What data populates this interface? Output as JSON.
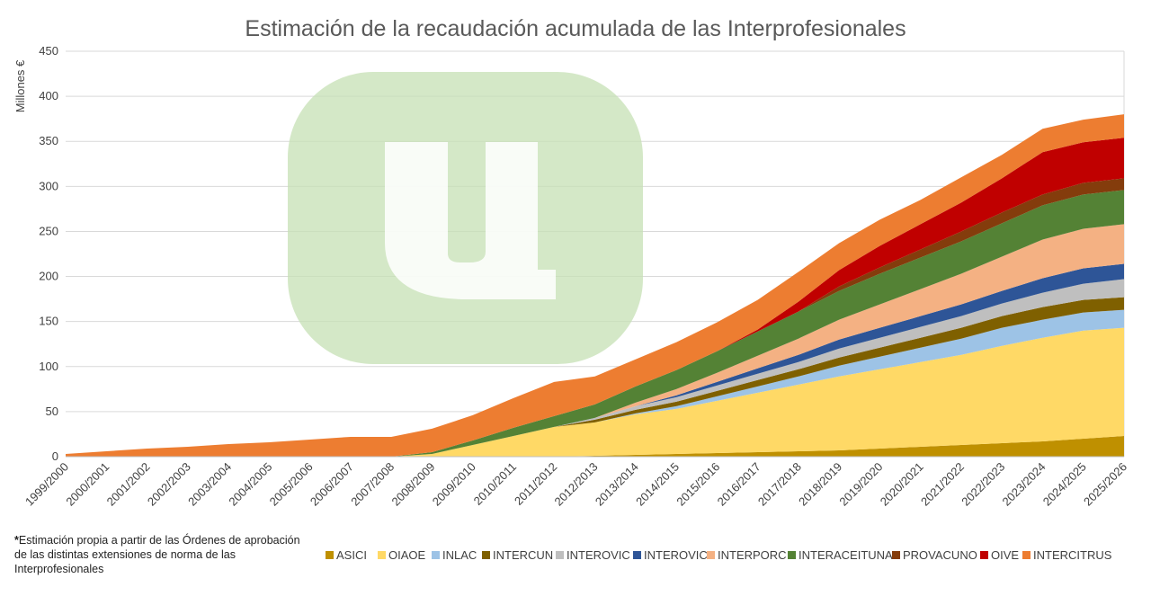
{
  "chart_data": {
    "type": "area",
    "stacked": true,
    "title": "Estimación de la recaudación acumulada de las Interprofesionales",
    "ylabel": "Millones €",
    "xlabel": "",
    "ylim": [
      0,
      450
    ],
    "yticks": [
      0,
      50,
      100,
      150,
      200,
      250,
      300,
      350,
      400,
      450
    ],
    "grid": true,
    "legend_position": "bottom",
    "categories": [
      "1999/2000",
      "2000/2001",
      "2001/2002",
      "2002/2003",
      "2003/2004",
      "2004/2005",
      "2005/2006",
      "2006/2007",
      "2007/2008",
      "2008/2009",
      "2009/2010",
      "2010/2011",
      "2011/2012",
      "2012/2013",
      "2013/2014",
      "2014/2015",
      "2015/2016",
      "2016/2017",
      "2017/2018",
      "2018/2019",
      "2019/2020",
      "2020/2021",
      "2021/2022",
      "2022/2023",
      "2023/2024",
      "2024/2025",
      "2025/2026"
    ],
    "series": [
      {
        "name": "ASICI",
        "color": "#BF9000",
        "values": [
          0,
          0,
          0,
          0,
          0,
          0,
          0,
          0,
          0,
          0,
          0,
          0,
          0,
          1,
          2,
          3,
          4,
          5,
          6,
          7,
          9,
          11,
          13,
          15,
          17,
          20,
          23
        ]
      },
      {
        "name": "OIAOE",
        "color": "#FFD966",
        "values": [
          0,
          0,
          0,
          0,
          0,
          0,
          0,
          0,
          0,
          3,
          13,
          23,
          33,
          37,
          45,
          50,
          58,
          66,
          74,
          82,
          88,
          94,
          100,
          108,
          115,
          120,
          120
        ]
      },
      {
        "name": "INLAC",
        "color": "#9DC3E6",
        "values": [
          0,
          0,
          0,
          0,
          0,
          0,
          0,
          0,
          0,
          0,
          0,
          0,
          0,
          0,
          1,
          3,
          5,
          7,
          9,
          12,
          14,
          16,
          18,
          20,
          20,
          20,
          20
        ]
      },
      {
        "name": "INTERCUN",
        "color": "#7F6000",
        "values": [
          0,
          0,
          0,
          0,
          0,
          0,
          0,
          0,
          0,
          0,
          0,
          0,
          0,
          3,
          4,
          5,
          6,
          7,
          8,
          9,
          10,
          11,
          12,
          13,
          14,
          14,
          14
        ]
      },
      {
        "name": "INTEROVIC",
        "color": "#BFBFBF",
        "values": [
          0,
          0,
          0,
          0,
          0,
          0,
          0,
          0,
          0,
          0,
          0,
          0,
          0,
          2,
          4,
          5,
          6,
          7,
          8,
          10,
          11,
          12,
          13,
          14,
          16,
          18,
          20
        ]
      },
      {
        "name": "INTEROVIC",
        "color": "#2E5597",
        "values": [
          0,
          0,
          0,
          0,
          0,
          0,
          0,
          0,
          0,
          0,
          0,
          0,
          0,
          0,
          0,
          2,
          4,
          6,
          8,
          10,
          11,
          12,
          13,
          14,
          16,
          17,
          17
        ]
      },
      {
        "name": "INTERPORC",
        "color": "#F4B183",
        "values": [
          0,
          0,
          0,
          0,
          0,
          0,
          0,
          0,
          0,
          0,
          0,
          0,
          0,
          0,
          4,
          7,
          10,
          14,
          18,
          22,
          26,
          30,
          34,
          38,
          43,
          44,
          44
        ]
      },
      {
        "name": "INTERACEITUNA",
        "color": "#548235",
        "values": [
          0,
          0,
          0,
          0,
          0,
          0,
          0,
          0,
          0,
          2,
          5,
          9,
          12,
          15,
          18,
          21,
          24,
          27,
          30,
          32,
          34,
          35,
          36,
          37,
          38,
          38,
          38
        ]
      },
      {
        "name": "PROVACUNO",
        "color": "#843C0C",
        "values": [
          0,
          0,
          0,
          0,
          0,
          0,
          0,
          0,
          0,
          0,
          0,
          0,
          0,
          0,
          0,
          0,
          0,
          0,
          0,
          5,
          7,
          9,
          11,
          12,
          12,
          13,
          13
        ]
      },
      {
        "name": "OIVE",
        "color": "#C00000",
        "values": [
          0,
          0,
          0,
          0,
          0,
          0,
          0,
          0,
          0,
          0,
          0,
          0,
          0,
          0,
          0,
          0,
          0,
          2,
          11,
          18,
          24,
          28,
          32,
          38,
          47,
          45,
          45
        ]
      },
      {
        "name": "INTERCITRUS",
        "color": "#ED7D31",
        "values": [
          3,
          6,
          9,
          11,
          14,
          16,
          19,
          22,
          22,
          26,
          28,
          33,
          38,
          31,
          30,
          31,
          32,
          33,
          33,
          30,
          29,
          27,
          28,
          26,
          26,
          25,
          26
        ]
      }
    ],
    "watermark": {
      "shape": "rounded-square",
      "letter": "u",
      "color": "#C5E0B4"
    }
  },
  "footnote": {
    "marker": "*",
    "text": "Estimación propia a partir de las Órdenes de aprobación de las distintas extensiones de norma de las Interprofesionales"
  }
}
